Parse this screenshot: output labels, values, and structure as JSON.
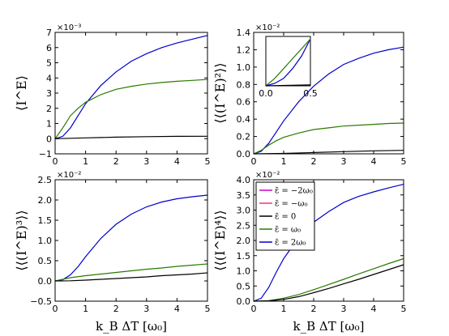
{
  "chart_data": [
    {
      "type": "line",
      "ylabel": "⟨I^E⟩",
      "xlabel": "",
      "offset_text": "×10⁻³",
      "xlim": [
        0,
        5
      ],
      "ylim": [
        -1,
        7
      ],
      "xticks": [
        "0",
        "1",
        "2",
        "3",
        "4",
        "5"
      ],
      "yticks": [
        "−1",
        "0",
        "1",
        "2",
        "3",
        "4",
        "5",
        "6",
        "7"
      ],
      "ytick_values": [
        -1,
        0,
        1,
        2,
        3,
        4,
        5,
        6,
        7
      ],
      "series": [
        {
          "color": "#0000cc",
          "x": [
            0,
            0.25,
            0.5,
            0.75,
            1.0,
            1.5,
            2.0,
            2.5,
            3.0,
            3.5,
            4.0,
            4.5,
            5.0
          ],
          "values": [
            0,
            0.15,
            0.7,
            1.5,
            2.3,
            3.5,
            4.4,
            5.1,
            5.6,
            6.0,
            6.3,
            6.55,
            6.8
          ]
        },
        {
          "color": "#2a7a00",
          "x": [
            0,
            0.25,
            0.5,
            0.75,
            1.0,
            1.5,
            2.0,
            2.5,
            3.0,
            3.5,
            4.0,
            4.5,
            5.0
          ],
          "values": [
            0,
            0.7,
            1.5,
            2.0,
            2.4,
            2.9,
            3.25,
            3.45,
            3.6,
            3.7,
            3.78,
            3.84,
            3.9
          ]
        },
        {
          "color": "#000000",
          "x": [
            0,
            1,
            2,
            3,
            4,
            5
          ],
          "values": [
            0,
            0.05,
            0.1,
            0.13,
            0.15,
            0.16
          ]
        }
      ]
    },
    {
      "type": "line",
      "ylabel": "⟨⟨(I^E)²⟩⟩",
      "xlabel": "",
      "offset_text": "×10⁻²",
      "xlim": [
        0,
        5
      ],
      "ylim": [
        0,
        1.4
      ],
      "xticks": [
        "0",
        "1",
        "2",
        "3",
        "4",
        "5"
      ],
      "yticks": [
        "0.0",
        "0.2",
        "0.4",
        "0.6",
        "0.8",
        "1.0",
        "1.2",
        "1.4"
      ],
      "ytick_values": [
        0,
        0.2,
        0.4,
        0.6,
        0.8,
        1.0,
        1.2,
        1.4
      ],
      "series": [
        {
          "color": "#0000cc",
          "x": [
            0,
            0.25,
            0.5,
            0.75,
            1.0,
            1.5,
            2.0,
            2.5,
            3.0,
            3.5,
            4.0,
            4.5,
            5.0
          ],
          "values": [
            0,
            0.03,
            0.12,
            0.25,
            0.38,
            0.6,
            0.78,
            0.92,
            1.03,
            1.1,
            1.16,
            1.2,
            1.23
          ]
        },
        {
          "color": "#2a7a00",
          "x": [
            0,
            0.25,
            0.5,
            0.75,
            1.0,
            1.5,
            2.0,
            2.5,
            3.0,
            3.5,
            4.0,
            4.5,
            5.0
          ],
          "values": [
            0,
            0.04,
            0.1,
            0.15,
            0.19,
            0.24,
            0.28,
            0.3,
            0.32,
            0.33,
            0.34,
            0.35,
            0.355
          ]
        },
        {
          "color": "#000000",
          "x": [
            0,
            1,
            2,
            3,
            4,
            5
          ],
          "values": [
            0,
            0.005,
            0.015,
            0.025,
            0.035,
            0.04
          ]
        }
      ],
      "inset": {
        "xlim": [
          0,
          0.5
        ],
        "xticks": [
          "0.0",
          "0.5"
        ],
        "series": [
          {
            "color": "#0000cc",
            "x": [
              0,
              0.1,
              0.2,
              0.3,
              0.4,
              0.5
            ],
            "values": [
              0,
              0.05,
              0.15,
              0.35,
              0.6,
              0.95
            ]
          },
          {
            "color": "#2a7a00",
            "x": [
              0,
              0.1,
              0.2,
              0.3,
              0.4,
              0.5
            ],
            "values": [
              0,
              0.15,
              0.35,
              0.55,
              0.75,
              0.95
            ]
          },
          {
            "color": "#000000",
            "x": [
              0,
              0.5
            ],
            "values": [
              0,
              0.02
            ]
          }
        ]
      }
    },
    {
      "type": "line",
      "ylabel": "⟨⟨(I^E)³⟩⟩",
      "xlabel": "k_B ΔT [ω₀]",
      "offset_text": "×10⁻²",
      "xlim": [
        0,
        5
      ],
      "ylim": [
        -0.5,
        2.5
      ],
      "xticks": [
        "0",
        "1",
        "2",
        "3",
        "4",
        "5"
      ],
      "yticks": [
        "−0.5",
        "0.0",
        "0.5",
        "1.0",
        "1.5",
        "2.0",
        "2.5"
      ],
      "ytick_values": [
        -0.5,
        0,
        0.5,
        1.0,
        1.5,
        2.0,
        2.5
      ],
      "series": [
        {
          "color": "#0000cc",
          "x": [
            0,
            0.25,
            0.5,
            0.75,
            1.0,
            1.5,
            2.0,
            2.5,
            3.0,
            3.5,
            4.0,
            4.5,
            5.0
          ],
          "values": [
            0,
            0.03,
            0.15,
            0.35,
            0.6,
            1.05,
            1.4,
            1.65,
            1.83,
            1.95,
            2.03,
            2.08,
            2.12
          ]
        },
        {
          "color": "#2a7a00",
          "x": [
            0,
            0.5,
            1.0,
            1.5,
            2.0,
            2.5,
            3.0,
            3.5,
            4.0,
            4.5,
            5.0
          ],
          "values": [
            0,
            0.08,
            0.13,
            0.17,
            0.21,
            0.25,
            0.29,
            0.32,
            0.36,
            0.39,
            0.42
          ]
        },
        {
          "color": "#000000",
          "x": [
            0,
            0.5,
            1.0,
            1.5,
            2.0,
            2.5,
            3.0,
            3.5,
            4.0,
            4.5,
            5.0
          ],
          "values": [
            0,
            0.005,
            0.02,
            0.04,
            0.06,
            0.08,
            0.1,
            0.13,
            0.15,
            0.17,
            0.2
          ]
        }
      ]
    },
    {
      "type": "line",
      "ylabel": "⟨⟨(I^E)⁴⟩⟩",
      "xlabel": "k_B ΔT [ω₀]",
      "offset_text": "×10⁻²",
      "xlim": [
        0,
        5
      ],
      "ylim": [
        0,
        4.0
      ],
      "xticks": [
        "0",
        "1",
        "2",
        "3",
        "4",
        "5"
      ],
      "yticks": [
        "0.0",
        "0.5",
        "1.0",
        "1.5",
        "2.0",
        "2.5",
        "3.0",
        "3.5",
        "4.0"
      ],
      "ytick_values": [
        0,
        0.5,
        1.0,
        1.5,
        2.0,
        2.5,
        3.0,
        3.5,
        4.0
      ],
      "legend": {
        "placement": "top-left",
        "entries": [
          {
            "label": "ε̄ = −2ω₀",
            "color": "#cc00cc"
          },
          {
            "label": "ε̄ = −ω₀",
            "color": "#ff3366"
          },
          {
            "label": "ε̄ = 0",
            "color": "#000000"
          },
          {
            "label": "ε̄ = ω₀",
            "color": "#2a7a00"
          },
          {
            "label": "ε̄ = 2ω₀",
            "color": "#0000cc"
          }
        ]
      },
      "series": [
        {
          "color": "#0000cc",
          "x": [
            0,
            0.25,
            0.5,
            0.75,
            1.0,
            1.5,
            2.0,
            2.5,
            3.0,
            3.5,
            4.0,
            4.5,
            5.0
          ],
          "values": [
            0,
            0.1,
            0.45,
            0.95,
            1.4,
            2.1,
            2.6,
            2.95,
            3.25,
            3.45,
            3.6,
            3.73,
            3.85
          ]
        },
        {
          "color": "#2a7a00",
          "x": [
            0,
            0.5,
            1.0,
            1.5,
            2.0,
            2.5,
            3.0,
            3.5,
            4.0,
            4.5,
            5.0
          ],
          "values": [
            0,
            0.02,
            0.1,
            0.22,
            0.38,
            0.55,
            0.72,
            0.9,
            1.07,
            1.24,
            1.4
          ]
        },
        {
          "color": "#000000",
          "x": [
            0,
            0.5,
            1.0,
            1.5,
            2.0,
            2.5,
            3.0,
            3.5,
            4.0,
            4.5,
            5.0
          ],
          "values": [
            0,
            0.01,
            0.06,
            0.15,
            0.28,
            0.42,
            0.57,
            0.72,
            0.88,
            1.04,
            1.2
          ]
        }
      ]
    }
  ]
}
